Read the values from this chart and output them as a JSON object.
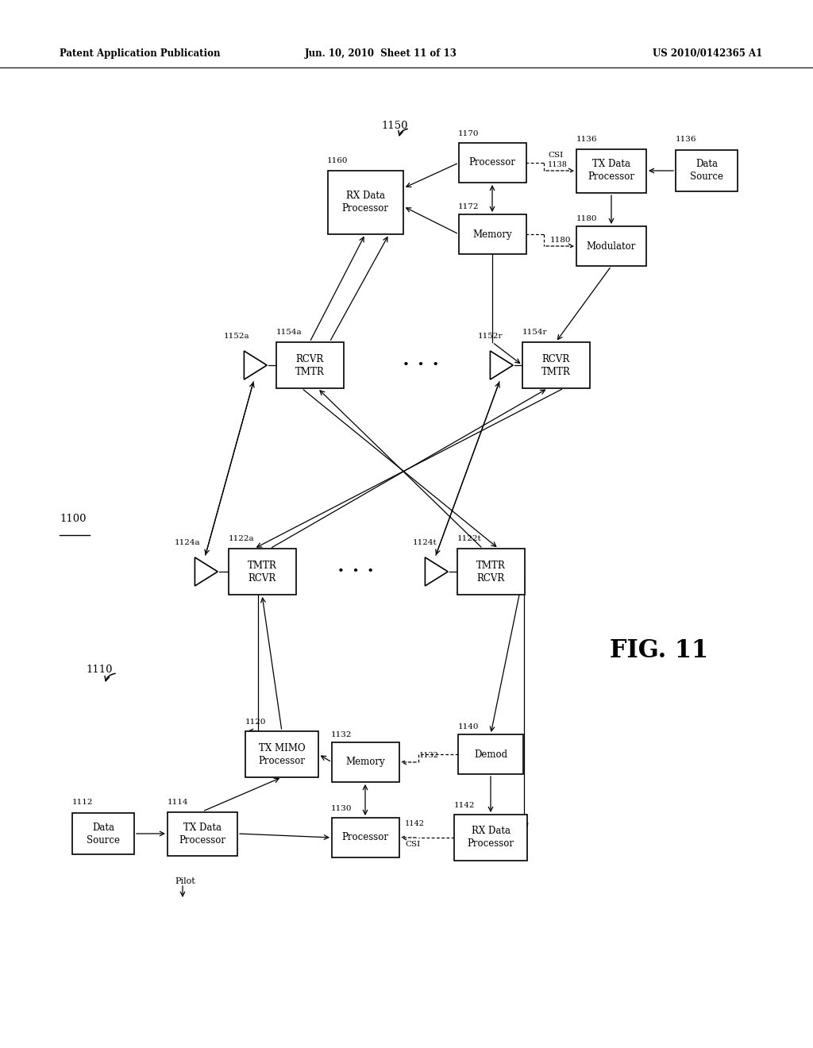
{
  "bg_color": "#ffffff",
  "header_left": "Patent Application Publication",
  "header_mid": "Jun. 10, 2010  Sheet 11 of 13",
  "header_right": "US 2010/0142365 A1",
  "fig_label": "FIG. 11"
}
